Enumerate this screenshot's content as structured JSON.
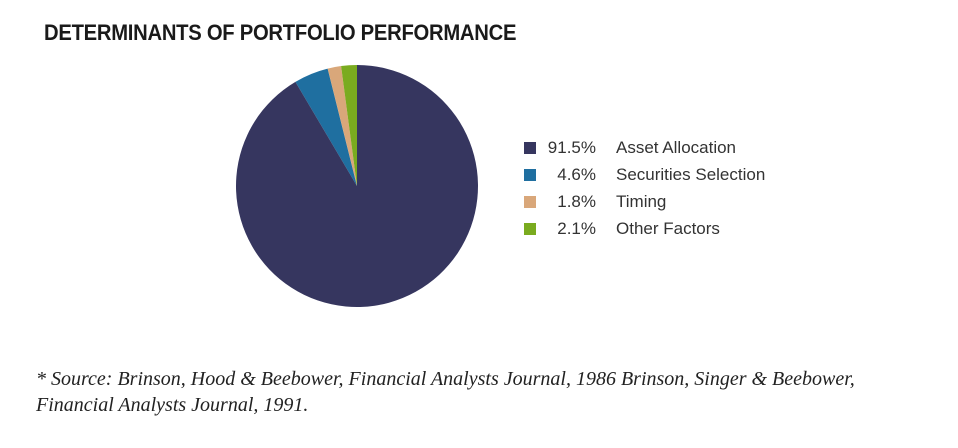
{
  "chart_data": {
    "type": "pie",
    "title": "DETERMINANTS OF PORTFOLIO PERFORMANCE",
    "slices": [
      {
        "label": "Asset Allocation",
        "value": 91.5,
        "display": "91.5%",
        "color": "#36365f"
      },
      {
        "label": "Securities Selection",
        "value": 4.6,
        "display": "4.6%",
        "color": "#1f6fa0"
      },
      {
        "label": "Timing",
        "value": 1.8,
        "display": "1.8%",
        "color": "#d9a77a"
      },
      {
        "label": "Other Factors",
        "value": 2.1,
        "display": "2.1%",
        "color": "#7aab1f"
      }
    ],
    "legend_position": "right"
  },
  "footnote": "* Source: Brinson, Hood & Beebower, Financial Analysts Journal, 1986 Brinson, Singer & Beebower, Financial Analysts Journal, 1991."
}
